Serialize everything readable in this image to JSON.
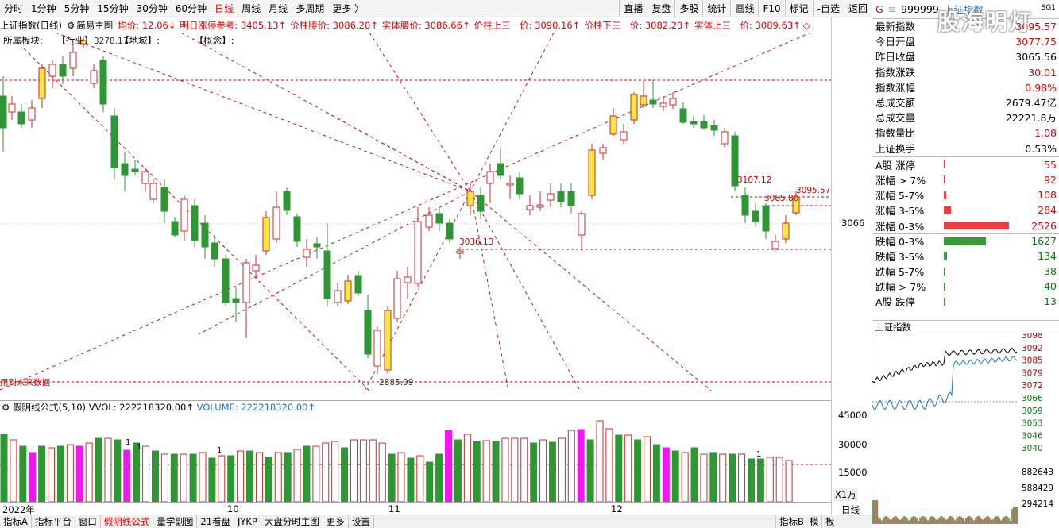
{
  "top_tabs": [
    "分时",
    "1分钟",
    "5分钟",
    "15分钟",
    "30分钟",
    "60分钟",
    "日线",
    "周线",
    "月线",
    "多周期",
    "更多 〉"
  ],
  "active_tab": "日线",
  "right_buttons": [
    "直播",
    "复盘",
    "多股",
    "统计",
    "画线",
    "F10",
    "标记",
    "-自选",
    "返回"
  ],
  "info": {
    "name": "上证指数(日线)",
    "main": "简易主图",
    "avg": "均价: 12.06↓",
    "limit_ref": "明日涨停参考: 3405.13↑",
    "waist": "价柱腰价: 3086.20↑",
    "body_waist": "实体腰价: 3086.66↑",
    "upper_third": "价柱上三一价: 3090.16↑",
    "lower_third": "价柱下三一价: 3082.23↑",
    "body_upper_third": "实体上三一价: 3089.63↑",
    "diamond": "◇"
  },
  "blocks": {
    "sector": "所属板块:",
    "industry": "【行业】",
    "region": "【地域】:",
    "concept": "【概念】:"
  },
  "price_labels": {
    "high_left": "3278.17",
    "p3107": "3107.12",
    "p3095": "3095.57",
    "p3085": "3085.80",
    "p3036": "3036.13",
    "low": "2885.09",
    "future": "用到未来数据"
  },
  "yaxis": {
    "main": "3066",
    "vol": [
      "45000",
      "30000",
      "15000"
    ],
    "unit": "X1万"
  },
  "vol_title": {
    "formula": "假阴线公式(5,10)",
    "vvol": "VVOL: 222218320.00↑",
    "volume": "VOLUME: 222218320.00↑"
  },
  "dates": [
    "2022年",
    "10",
    "11",
    "12"
  ],
  "date_right": "日线",
  "bottom_tabs": [
    "指标A",
    "指标平台",
    "窗口",
    "假阴线公式",
    "量学副图",
    "21看盘",
    "JYKP",
    "大盘分时主图",
    "更多",
    "设置"
  ],
  "bottom_active": "假阴线公式",
  "bottom_right": [
    "指标B",
    "模",
    "板"
  ],
  "quote": {
    "code": "999999",
    "name": "上证指数",
    "tag": "SG1",
    "rows": [
      {
        "k": "最新指数",
        "v": "3095.57",
        "c": "red"
      },
      {
        "k": "今日开盘",
        "v": "3077.75",
        "c": "red"
      },
      {
        "k": "昨日收盘",
        "v": "3065.56",
        "c": "black"
      },
      {
        "k": "指数涨跌",
        "v": "30.01",
        "c": "red"
      },
      {
        "k": "指数涨幅",
        "v": "0.98%",
        "c": "red"
      },
      {
        "k": "总成交额",
        "v": "2679.47亿",
        "c": "black"
      },
      {
        "k": "总成交量",
        "v": "22221.8万",
        "c": "black"
      },
      {
        "k": "指数量比",
        "v": "1.08",
        "c": "red"
      },
      {
        "k": "上证换手",
        "v": "0.53%",
        "c": "black"
      }
    ],
    "stats": [
      {
        "k": "A股 涨停",
        "v": "55",
        "c": "red",
        "w": 2
      },
      {
        "k": "涨幅 > 7%",
        "v": "92",
        "c": "red",
        "w": 2
      },
      {
        "k": "涨幅 5-7%",
        "v": "108",
        "c": "red",
        "w": 3
      },
      {
        "k": "涨幅 3-5%",
        "v": "284",
        "c": "red",
        "w": 9
      },
      {
        "k": "涨幅 0-3%",
        "v": "2526",
        "c": "red",
        "w": 82
      },
      {
        "k": "跌幅 0-3%",
        "v": "1627",
        "c": "green",
        "w": 53
      },
      {
        "k": "跌幅 3-5%",
        "v": "134",
        "c": "green",
        "w": 4
      },
      {
        "k": "跌幅 5-7%",
        "v": "38",
        "c": "green",
        "w": 1
      },
      {
        "k": "跌幅 > 7%",
        "v": "40",
        "c": "green",
        "w": 1
      },
      {
        "k": "A股 跌停",
        "v": "13",
        "c": "green",
        "w": 1
      }
    ],
    "mini_title": "上证指数",
    "mini_y": [
      "3098",
      "3092",
      "3085",
      "3079",
      "3072",
      "3066",
      "3059",
      "3053",
      "3046",
      "3040"
    ],
    "mini_vol": [
      "882643",
      "588429",
      "294214"
    ]
  },
  "watermark": "股海明灯",
  "chart_data": {
    "type": "candlestick",
    "title": "上证指数(日线)",
    "series": [
      {
        "name": "上证指数"
      }
    ],
    "key_levels": [
      3278.17,
      3107.12,
      3095.57,
      3085.8,
      3036.13,
      2885.09
    ],
    "last_close": 3095.57
  }
}
